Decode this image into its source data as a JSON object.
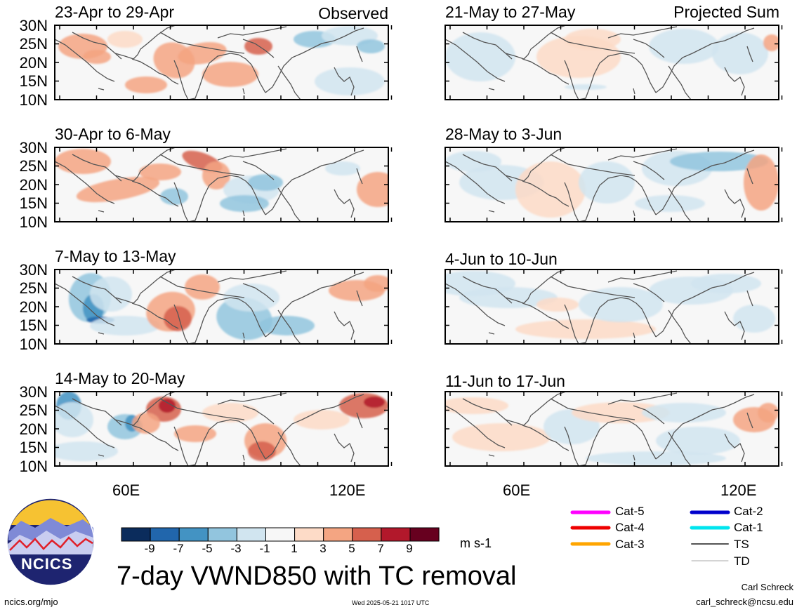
{
  "panels": [
    {
      "title": "23-Apr to 29-Apr",
      "corner": "Observed"
    },
    {
      "title": "30-Apr to 6-May",
      "corner": ""
    },
    {
      "title": "7-May to 13-May",
      "corner": ""
    },
    {
      "title": "14-May to 20-May",
      "corner": ""
    },
    {
      "title": "21-May to 27-May",
      "corner": "Projected Sum"
    },
    {
      "title": "28-May to 3-Jun",
      "corner": ""
    },
    {
      "title": "4-Jun to 10-Jun",
      "corner": ""
    },
    {
      "title": "11-Jun to 17-Jun",
      "corner": ""
    }
  ],
  "lat_labels": [
    "30N",
    "25N",
    "20N",
    "15N",
    "10N"
  ],
  "lon_labels": [
    "60E",
    "120E"
  ],
  "colorbar": {
    "ticks": [
      "-9",
      "-7",
      "-5",
      "-3",
      "-1",
      "1",
      "3",
      "5",
      "7",
      "9"
    ],
    "colors": [
      "#0b2c5c",
      "#2166ac",
      "#4393c3",
      "#92c5de",
      "#d1e5f0",
      "#f7f7f7",
      "#fddbc7",
      "#f4a582",
      "#d6604d",
      "#b2182b",
      "#67001f"
    ],
    "units": "m s-1"
  },
  "title": "7-day VWND850 with TC removal",
  "logo": {
    "text": "NCICS"
  },
  "legend": [
    {
      "label": "Cat-5",
      "color": "#ff00ff"
    },
    {
      "label": "Cat-4",
      "color": "#ee0000"
    },
    {
      "label": "Cat-3",
      "color": "#ffa500"
    },
    {
      "label": "Cat-2",
      "color": "#0000cc"
    },
    {
      "label": "Cat-1",
      "color": "#00e5ee"
    },
    {
      "label": "TS",
      "color": "#555555"
    },
    {
      "label": "TD",
      "color": "#aaaaaa"
    }
  ],
  "footer": {
    "left": "ncics.org/mjo",
    "center": "Wed 2025-05-21 1017 UTC",
    "right_name": "Carl Schreck",
    "right_email": "carl_schreck@ncsu.edu"
  }
}
